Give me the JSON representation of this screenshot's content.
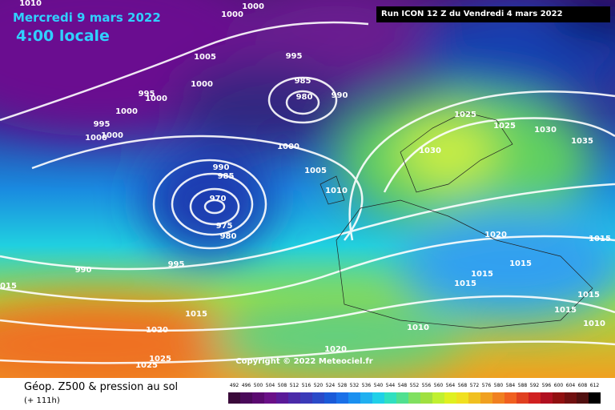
{
  "header": {
    "date": "Mercredi 9 mars 2022",
    "time": "4:00 locale",
    "run": "Run ICON 12 Z du Vendredi 4 mars 2022"
  },
  "copyright": "Copyright © 2022 Meteociel.fr",
  "footer": {
    "title": "Géop. Z500 & pression au sol",
    "lead": "(+ 111h)"
  },
  "scale": {
    "labels": [
      492,
      496,
      500,
      504,
      508,
      512,
      516,
      520,
      524,
      528,
      532,
      536,
      540,
      544,
      548,
      552,
      556,
      560,
      564,
      568,
      572,
      576,
      580,
      584,
      588,
      592,
      596,
      600,
      604,
      608,
      612
    ]
  },
  "isobar_labels": [
    "1010",
    "1000",
    "1000",
    "1005",
    "995",
    "985",
    "980",
    "990",
    "1000",
    "995",
    "1000",
    "1000",
    "995",
    "1000",
    "1000",
    "1000",
    "990",
    "985",
    "970",
    "975",
    "980",
    "1005",
    "1010",
    "1025",
    "1025",
    "1030",
    "1030",
    "1035",
    "1020",
    "1015",
    "1015",
    "1015",
    "1015",
    "1015",
    "1015",
    "1010",
    "995",
    "990",
    "1015",
    "1015",
    "1020",
    "1010",
    "1020",
    "1025",
    "1025"
  ]
}
